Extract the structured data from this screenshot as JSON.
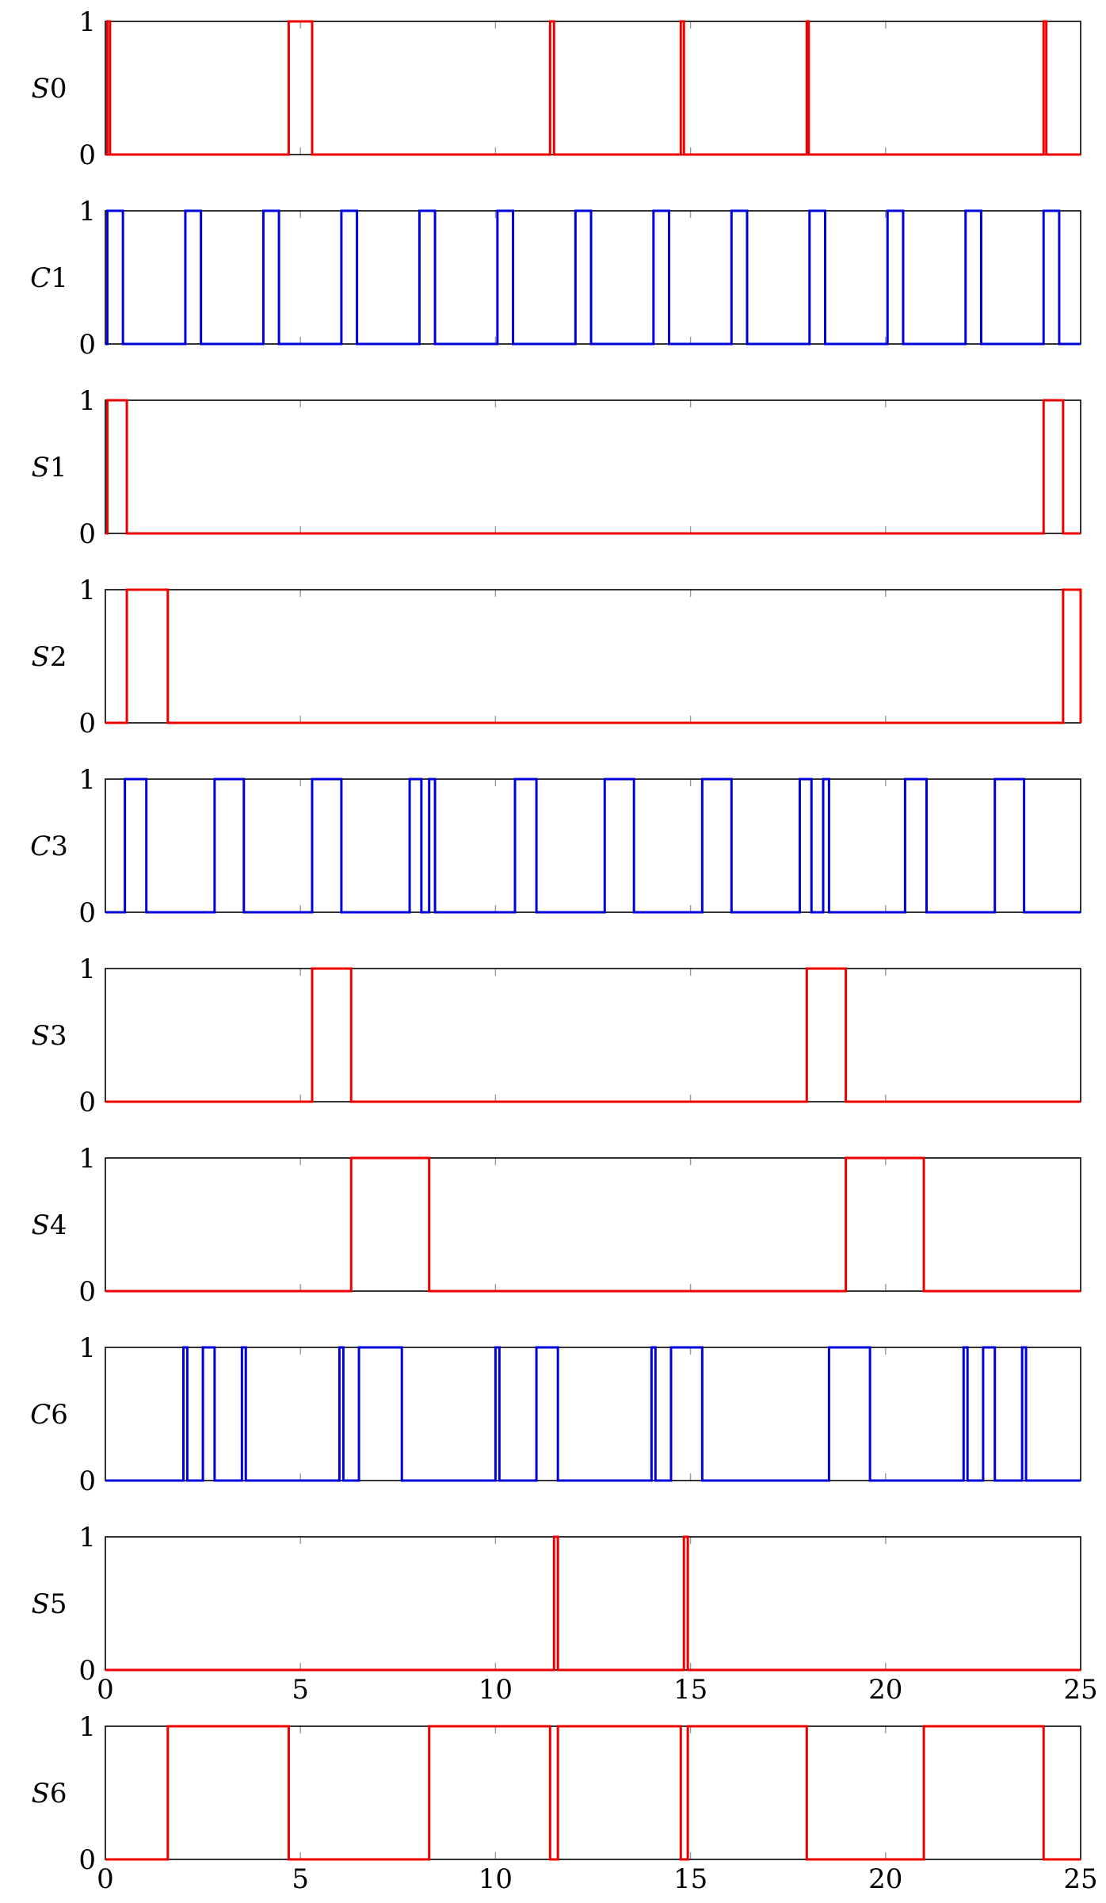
{
  "chart_data": {
    "type": "line",
    "style": "step",
    "xlim": [
      0,
      25
    ],
    "ylim": [
      0,
      1
    ],
    "xticks": [
      0,
      5,
      10,
      15,
      20,
      25
    ],
    "yticks": [
      0,
      1
    ],
    "colors": {
      "S": "#ee0000",
      "C": "#0000dd",
      "axis": "#000000",
      "tick": "#999999"
    },
    "panels": [
      {
        "name": "S0",
        "letter": "S",
        "index": "0",
        "color": "#ee0000",
        "high": [
          [
            0.05,
            0.12
          ],
          [
            4.7,
            5.3
          ],
          [
            11.4,
            11.5
          ],
          [
            14.75,
            14.83
          ],
          [
            17.98,
            18.03
          ],
          [
            24.05,
            24.12
          ]
        ],
        "xticklabels": false
      },
      {
        "name": "C1",
        "letter": "C",
        "index": "1",
        "color": "#0000dd",
        "high": [
          [
            0.05,
            0.45
          ],
          [
            2.05,
            2.45
          ],
          [
            4.05,
            4.45
          ],
          [
            6.05,
            6.45
          ],
          [
            8.05,
            8.45
          ],
          [
            10.05,
            10.45
          ],
          [
            12.05,
            12.45
          ],
          [
            14.05,
            14.45
          ],
          [
            16.05,
            16.45
          ],
          [
            18.05,
            18.45
          ],
          [
            20.05,
            20.45
          ],
          [
            22.05,
            22.45
          ],
          [
            24.05,
            24.45
          ]
        ],
        "xticklabels": false
      },
      {
        "name": "S1",
        "letter": "S",
        "index": "1",
        "color": "#ee0000",
        "high": [
          [
            0.05,
            0.55
          ],
          [
            24.05,
            24.55
          ]
        ],
        "xticklabels": false
      },
      {
        "name": "S2",
        "letter": "S",
        "index": "2",
        "color": "#ee0000",
        "high": [
          [
            0.55,
            1.6
          ],
          [
            24.55,
            25
          ]
        ],
        "xticklabels": false
      },
      {
        "name": "C3",
        "letter": "C",
        "index": "3",
        "color": "#0000dd",
        "high": [
          [
            0.5,
            1.05
          ],
          [
            2.8,
            3.55
          ],
          [
            5.3,
            6.05
          ],
          [
            7.8,
            8.1
          ],
          [
            8.3,
            8.45
          ],
          [
            10.5,
            11.05
          ],
          [
            12.8,
            13.55
          ],
          [
            15.3,
            16.05
          ],
          [
            17.8,
            18.1
          ],
          [
            18.4,
            18.55
          ],
          [
            20.5,
            21.05
          ],
          [
            22.8,
            23.55
          ]
        ],
        "xticklabels": false
      },
      {
        "name": "S3",
        "letter": "S",
        "index": "3",
        "color": "#ee0000",
        "high": [
          [
            5.3,
            6.3
          ],
          [
            17.98,
            18.98
          ]
        ],
        "xticklabels": false
      },
      {
        "name": "S4",
        "letter": "S",
        "index": "4",
        "color": "#ee0000",
        "high": [
          [
            6.3,
            8.3
          ],
          [
            18.98,
            20.98
          ]
        ],
        "xticklabels": false
      },
      {
        "name": "C6",
        "letter": "C",
        "index": "6",
        "color": "#0000dd",
        "high": [
          [
            2.0,
            2.1
          ],
          [
            2.5,
            2.8
          ],
          [
            3.5,
            3.6
          ],
          [
            6.0,
            6.1
          ],
          [
            6.5,
            7.6
          ],
          [
            10.0,
            10.1
          ],
          [
            11.05,
            11.6
          ],
          [
            14.0,
            14.1
          ],
          [
            14.5,
            15.3
          ],
          [
            18.55,
            19.6
          ],
          [
            22.0,
            22.1
          ],
          [
            22.5,
            22.8
          ],
          [
            23.5,
            23.6
          ]
        ],
        "xticklabels": false
      },
      {
        "name": "S5",
        "letter": "S",
        "index": "5",
        "color": "#ee0000",
        "high": [
          [
            11.5,
            11.6
          ],
          [
            14.83,
            14.93
          ]
        ],
        "xticklabels": true
      },
      {
        "name": "S6",
        "letter": "S",
        "index": "6",
        "color": "#ee0000",
        "high": [
          [
            1.6,
            4.7
          ],
          [
            8.3,
            11.4
          ],
          [
            11.6,
            14.75
          ],
          [
            14.93,
            17.98
          ],
          [
            20.98,
            24.05
          ]
        ],
        "xticklabels": true
      }
    ]
  }
}
